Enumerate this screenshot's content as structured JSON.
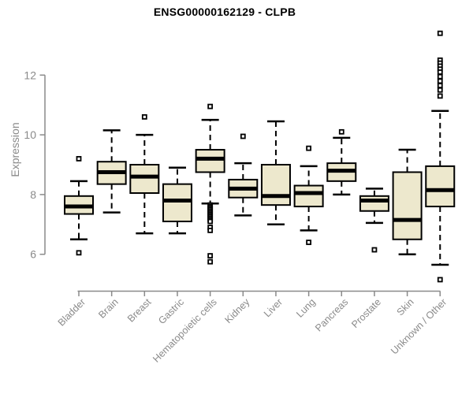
{
  "chart_data": {
    "type": "boxplot",
    "title": "ENSG00000162129 - CLPB",
    "ylabel": "Expression",
    "xlabel": "",
    "yticks": [
      6,
      8,
      10,
      12
    ],
    "ylim": [
      4.75,
      13.6
    ],
    "grid": false,
    "categories": [
      "Bladder",
      "Brain",
      "Breast",
      "Gastric",
      "Hematopoietic cells",
      "Kidney",
      "Liver",
      "Lung",
      "Pancreas",
      "Prostate",
      "Skin",
      "Unknown / Other"
    ],
    "boxes": [
      {
        "category": "Bladder",
        "whisker_low": 6.5,
        "q1": 7.35,
        "median": 7.6,
        "q3": 7.95,
        "whisker_high": 8.45,
        "outliers": [
          9.2,
          6.05
        ]
      },
      {
        "category": "Brain",
        "whisker_low": 7.4,
        "q1": 8.35,
        "median": 8.75,
        "q3": 9.1,
        "whisker_high": 10.15,
        "outliers": []
      },
      {
        "category": "Breast",
        "whisker_low": 6.7,
        "q1": 8.05,
        "median": 8.6,
        "q3": 9.0,
        "whisker_high": 10.0,
        "outliers": [
          10.6
        ]
      },
      {
        "category": "Gastric",
        "whisker_low": 6.7,
        "q1": 7.1,
        "median": 7.8,
        "q3": 8.35,
        "whisker_high": 8.9,
        "outliers": []
      },
      {
        "category": "Hematopoietic cells",
        "whisker_low": 7.7,
        "q1": 8.75,
        "median": 9.2,
        "q3": 9.5,
        "whisker_high": 10.5,
        "outliers": [
          10.95,
          7.65,
          7.6,
          7.55,
          7.5,
          7.45,
          7.4,
          7.35,
          7.3,
          7.25,
          7.2,
          7.15,
          7.1,
          6.9,
          6.8,
          5.95,
          5.75
        ]
      },
      {
        "category": "Kidney",
        "whisker_low": 7.3,
        "q1": 7.9,
        "median": 8.2,
        "q3": 8.5,
        "whisker_high": 9.05,
        "outliers": [
          9.95
        ]
      },
      {
        "category": "Liver",
        "whisker_low": 7.0,
        "q1": 7.65,
        "median": 7.95,
        "q3": 9.0,
        "whisker_high": 10.45,
        "outliers": []
      },
      {
        "category": "Lung",
        "whisker_low": 6.8,
        "q1": 7.6,
        "median": 8.05,
        "q3": 8.3,
        "whisker_high": 8.95,
        "outliers": [
          9.55,
          6.4
        ]
      },
      {
        "category": "Pancreas",
        "whisker_low": 8.0,
        "q1": 8.45,
        "median": 8.8,
        "q3": 9.05,
        "whisker_high": 9.9,
        "outliers": [
          10.1
        ]
      },
      {
        "category": "Prostate",
        "whisker_low": 7.05,
        "q1": 7.45,
        "median": 7.8,
        "q3": 7.95,
        "whisker_high": 8.2,
        "outliers": [
          6.15
        ]
      },
      {
        "category": "Skin",
        "whisker_low": 6.0,
        "q1": 6.5,
        "median": 7.15,
        "q3": 8.75,
        "whisker_high": 9.5,
        "outliers": []
      },
      {
        "category": "Unknown / Other",
        "whisker_low": 5.65,
        "q1": 7.6,
        "median": 8.15,
        "q3": 8.95,
        "whisker_high": 10.8,
        "outliers": [
          13.4,
          12.5,
          12.4,
          12.3,
          12.2,
          12.1,
          11.95,
          11.8,
          11.65,
          11.5,
          11.3,
          5.15
        ]
      }
    ],
    "colors": {
      "box_fill": "#EDE8CD",
      "box_border": "#000000",
      "median": "#000000",
      "axis": "#8A8A8A",
      "label": "#8A8A8A",
      "title": "#000000",
      "background": "#FFFFFF"
    }
  }
}
